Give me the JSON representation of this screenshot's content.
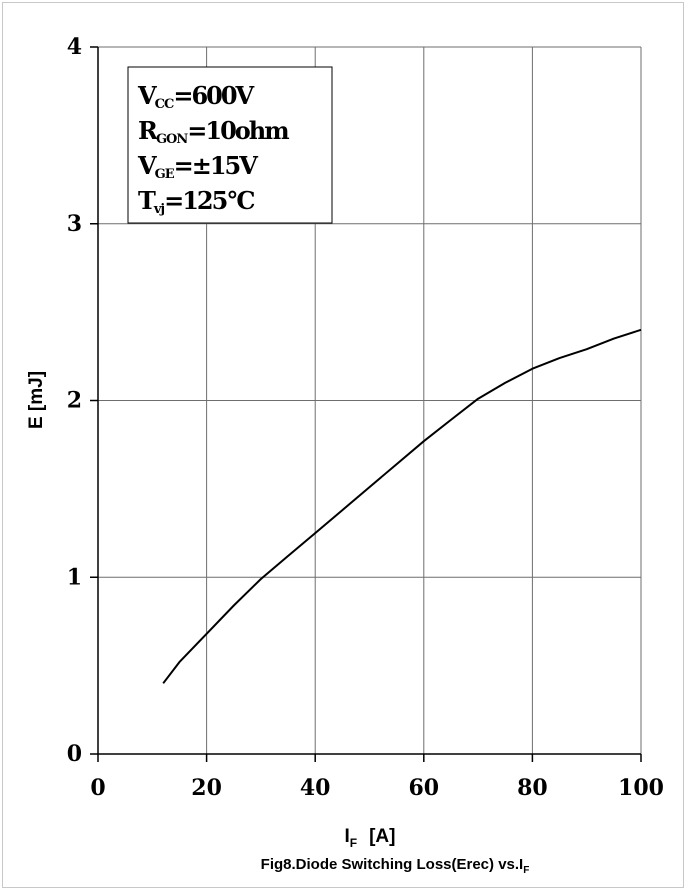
{
  "chart_data": {
    "type": "line",
    "title": "",
    "caption": {
      "main": "Fig8.Diode Switching Loss(Erec) vs.I",
      "sub": "F"
    },
    "xlabel": {
      "main": "I",
      "sub": "F",
      "unit": "[A]"
    },
    "ylabel": "E  [mJ]",
    "xlim": [
      0,
      100
    ],
    "ylim": [
      0,
      4
    ],
    "xticks": [
      "0",
      "20",
      "40",
      "60",
      "80",
      "100"
    ],
    "yticks": [
      "0",
      "1",
      "2",
      "3",
      "4"
    ],
    "grid": true,
    "conditions": [
      {
        "main": "V",
        "sub": "CC",
        "rest": "=600V"
      },
      {
        "main": "R",
        "sub": "GON",
        "rest": "=10ohm"
      },
      {
        "main": "V",
        "sub": "GE",
        "rest": "=±15V"
      },
      {
        "main": "T",
        "sub": "vj",
        "rest": "=125°C"
      }
    ],
    "series": [
      {
        "x": [
          12,
          15,
          20,
          25,
          30,
          35,
          40,
          45,
          50,
          55,
          60,
          65,
          70,
          75,
          80,
          85,
          90,
          95,
          100
        ],
        "values": [
          0.4,
          0.52,
          0.68,
          0.84,
          0.99,
          1.12,
          1.25,
          1.38,
          1.51,
          1.64,
          1.77,
          1.89,
          2.01,
          2.1,
          2.18,
          2.24,
          2.29,
          2.35,
          2.4
        ]
      }
    ],
    "colors": {
      "line": "#000000",
      "grid": "#6e6e6e",
      "axis": "#000000"
    }
  }
}
